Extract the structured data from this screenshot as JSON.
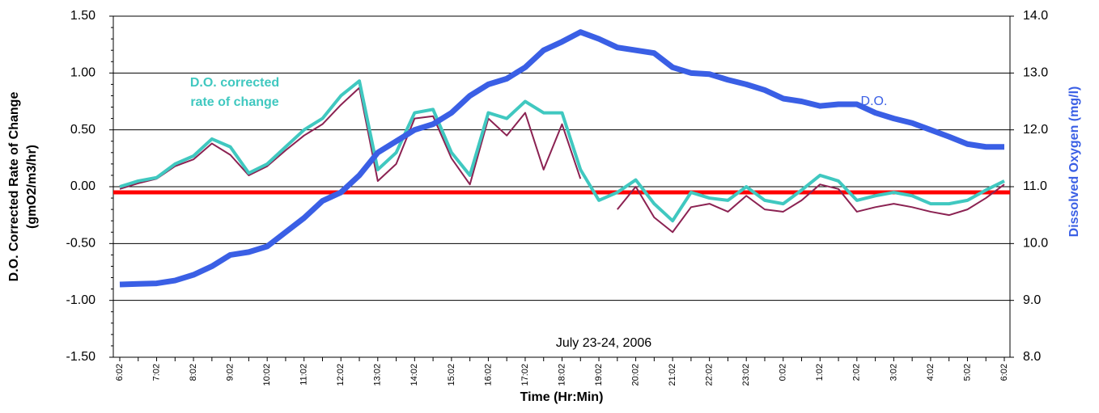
{
  "chart_data": {
    "type": "line",
    "x_title": "Time (Hr:Min)",
    "y_title": [
      "D.O. Corrected Rate of Change",
      "(gmO2/m3/hr)"
    ],
    "y2_title": "Dissolved Oxygen (mg/l)",
    "annotations": [
      {
        "text": [
          "D.O. corrected",
          "rate of change"
        ],
        "color": "#40C8C0"
      },
      {
        "text": [
          "D.O."
        ],
        "color": "#3A5FE5"
      },
      {
        "text": [
          "July 23-24, 2006"
        ],
        "color": "#000000"
      }
    ],
    "categories": [
      "6:02",
      null,
      "7:02",
      null,
      "8:02",
      null,
      "9:02",
      null,
      "10:02",
      null,
      "11:02",
      null,
      "12:02",
      null,
      "13:02",
      null,
      "14:02",
      null,
      "15:02",
      null,
      "16:02",
      null,
      "17:02",
      null,
      "18:02",
      null,
      "19:02",
      null,
      "20:02",
      null,
      "21:02",
      null,
      "22:02",
      null,
      "23:02",
      null,
      "0:02",
      null,
      "1:02",
      null,
      "2:02",
      null,
      "3:02",
      null,
      "4:02",
      null,
      "5:02",
      null,
      "6:02"
    ],
    "ylim": [
      -1.5,
      1.5
    ],
    "yticks": [
      {
        "value": -1.5,
        "label": "-1.50"
      },
      {
        "value": -1,
        "label": "-1.00"
      },
      {
        "value": -0.5,
        "label": "-0.50"
      },
      {
        "value": 0,
        "label": "0.00"
      },
      {
        "value": 0.5,
        "label": "0.50"
      },
      {
        "value": 1,
        "label": "1.00"
      },
      {
        "value": 1.5,
        "label": "1.50"
      }
    ],
    "y2lim": [
      8,
      14
    ],
    "y2ticks": [
      {
        "value": 8,
        "label": "8.0"
      },
      {
        "value": 9,
        "label": "9.0"
      },
      {
        "value": 10,
        "label": "10.0"
      },
      {
        "value": 11,
        "label": "11.0"
      },
      {
        "value": 12,
        "label": "12.0"
      },
      {
        "value": 13,
        "label": "13.0"
      },
      {
        "value": 14,
        "label": "14.0"
      }
    ],
    "grid": true,
    "hline": {
      "value": -0.05,
      "color": "#FF0000"
    },
    "series": [
      {
        "color": "#8B2252",
        "width": 2,
        "values": [
          -0.02,
          0.03,
          0.07,
          0.18,
          0.24,
          0.38,
          0.28,
          0.1,
          0.18,
          0.32,
          0.45,
          0.55,
          0.72,
          0.87,
          0.05,
          0.2,
          0.6,
          0.62,
          0.25,
          0.02,
          0.6,
          0.45,
          0.65,
          0.15,
          0.55,
          0.07,
          null,
          -0.2,
          0.0,
          -0.27,
          -0.4,
          -0.18,
          -0.15,
          -0.22,
          -0.08,
          -0.2,
          -0.22,
          -0.12,
          0.02,
          -0.02,
          -0.22,
          -0.18,
          -0.15,
          -0.18,
          -0.22,
          -0.25,
          -0.2,
          -0.1,
          0.02
        ]
      },
      {
        "color": "#40C8C0",
        "width": 4,
        "values": [
          0.0,
          0.05,
          0.08,
          0.2,
          0.27,
          0.42,
          0.35,
          0.12,
          0.2,
          0.35,
          0.5,
          0.6,
          0.8,
          0.93,
          0.15,
          0.3,
          0.65,
          0.68,
          0.3,
          0.1,
          0.65,
          0.6,
          0.75,
          0.65,
          0.65,
          0.15,
          -0.12,
          -0.05,
          0.06,
          -0.15,
          -0.3,
          -0.05,
          -0.1,
          -0.12,
          0.0,
          -0.12,
          -0.15,
          -0.03,
          0.1,
          0.05,
          -0.12,
          -0.08,
          -0.05,
          -0.08,
          -0.15,
          -0.15,
          -0.12,
          -0.03,
          0.05
        ]
      },
      {
        "color": "#3A5FE5",
        "width": 7,
        "axis": "y2",
        "values": [
          9.28,
          9.29,
          9.3,
          9.35,
          9.45,
          9.6,
          9.8,
          9.85,
          9.95,
          10.2,
          10.45,
          10.75,
          10.9,
          11.2,
          11.6,
          11.8,
          12.0,
          12.1,
          12.3,
          12.6,
          12.8,
          12.9,
          13.1,
          13.4,
          13.55,
          13.72,
          13.6,
          13.45,
          13.4,
          13.35,
          13.1,
          13.0,
          12.98,
          12.88,
          12.8,
          12.7,
          12.55,
          12.5,
          12.42,
          12.45,
          12.45,
          12.3,
          12.2,
          12.12,
          12.0,
          11.88,
          11.75,
          11.7,
          11.7
        ]
      }
    ]
  }
}
